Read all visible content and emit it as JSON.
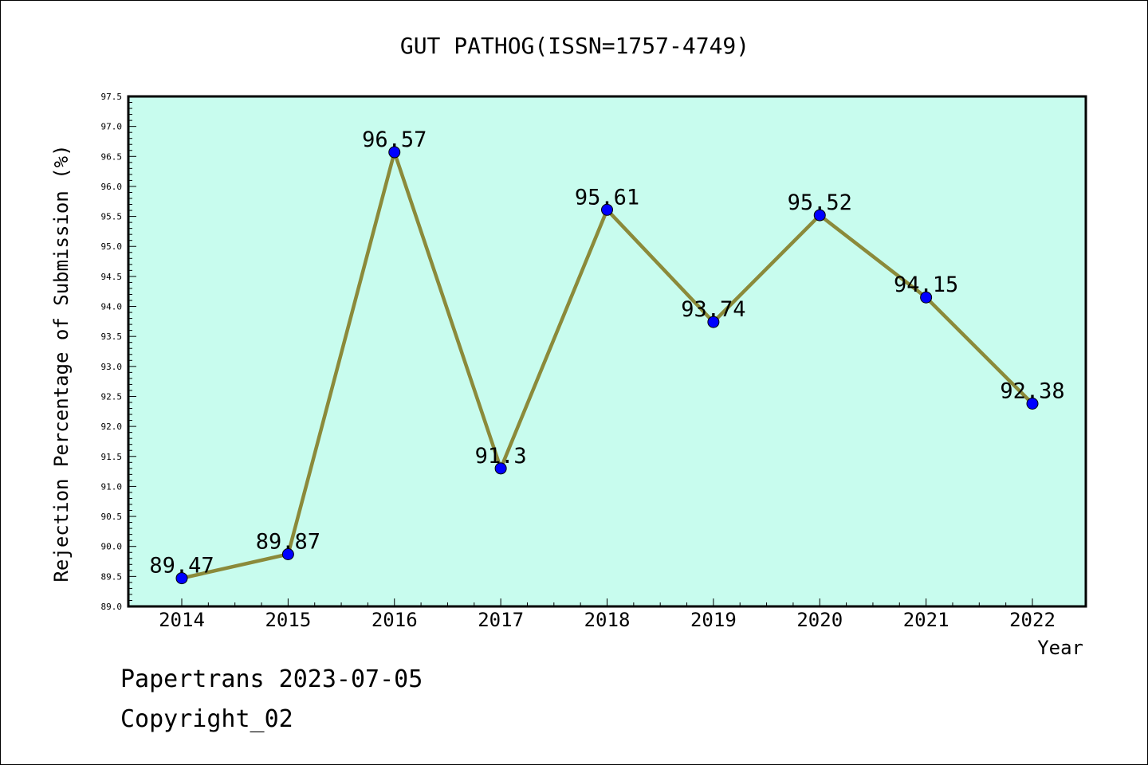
{
  "chart_data": {
    "type": "line",
    "title": "GUT PATHOG(ISSN=1757-4749)",
    "xlabel": "Year",
    "ylabel": "Rejection Percentage of Submission (%)",
    "x": [
      "2014",
      "2015",
      "2016",
      "2017",
      "2018",
      "2019",
      "2020",
      "2021",
      "2022"
    ],
    "series": [
      {
        "values": [
          89.47,
          89.87,
          96.57,
          91.3,
          95.61,
          93.74,
          95.52,
          94.15,
          92.38
        ]
      }
    ],
    "data_labels": [
      "89.47",
      "89.87",
      "96.57",
      "91.3",
      "95.61",
      "93.74",
      "95.52",
      "94.15",
      "92.38"
    ],
    "ylim": [
      89.0,
      97.5
    ],
    "y_ticks": [
      "89.0",
      "89.5",
      "90.0",
      "90.5",
      "91.0",
      "91.5",
      "92.0",
      "92.5",
      "93.0",
      "93.5",
      "94.0",
      "94.5",
      "95.0",
      "95.5",
      "96.0",
      "96.5",
      "97.0",
      "97.5"
    ],
    "grid": false,
    "colors": {
      "plot_background": "#c8fcee",
      "line": "#8b8a3a",
      "marker": "#0000ff"
    }
  },
  "footer": {
    "line1": "Papertrans 2023-07-05",
    "line2": "Copyright_02"
  }
}
